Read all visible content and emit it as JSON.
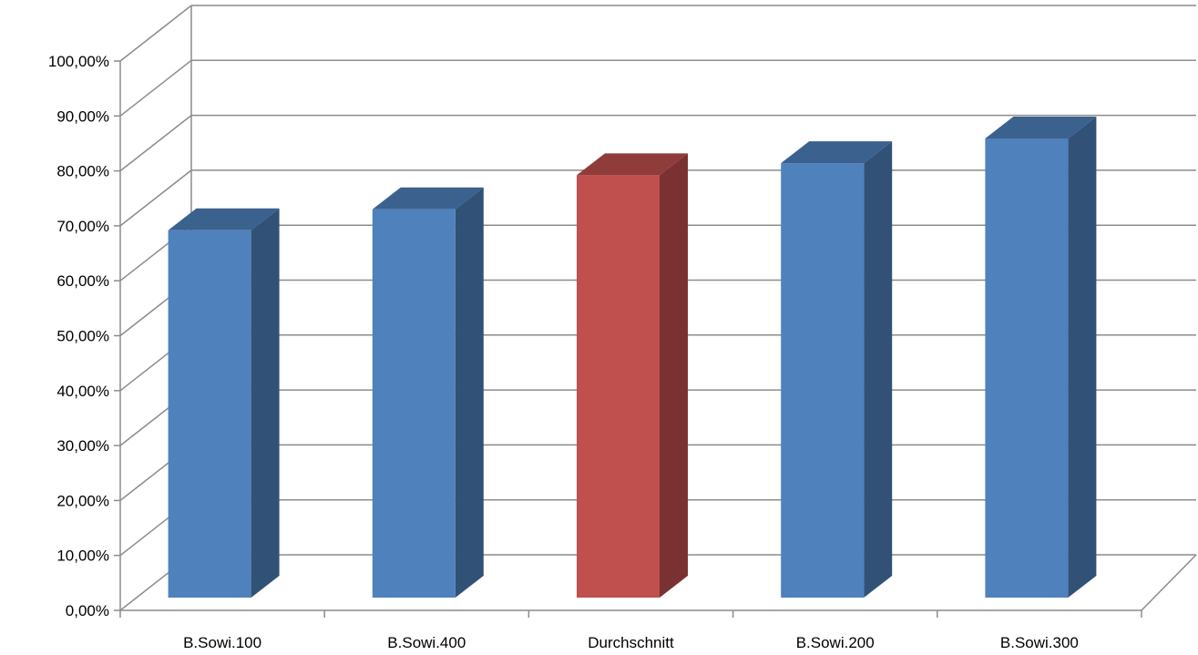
{
  "chart_data": {
    "type": "bar",
    "title": "",
    "xlabel": "",
    "ylabel": "",
    "categories": [
      "B.Sowi.100",
      "B.Sowi.400",
      "Durchschnitt",
      "B.Sowi.200",
      "B.Sowi.300"
    ],
    "values": [
      0.7,
      0.74,
      0.805,
      0.828,
      0.875
    ],
    "bar_colors": [
      "#4F81BD",
      "#4F81BD",
      "#C0504D",
      "#4F81BD",
      "#4F81BD"
    ],
    "ylim": [
      0,
      1
    ],
    "yticks": [
      0,
      0.1,
      0.2,
      0.3,
      0.4,
      0.5,
      0.6,
      0.7,
      0.8,
      0.9,
      1.0
    ],
    "ytick_labels": [
      "0,00%",
      "10,00%",
      "20,00%",
      "30,00%",
      "40,00%",
      "50,00%",
      "60,00%",
      "70,00%",
      "80,00%",
      "90,00%",
      "100,00%"
    ],
    "grid": true,
    "style": "3d-column",
    "legend": "none"
  }
}
